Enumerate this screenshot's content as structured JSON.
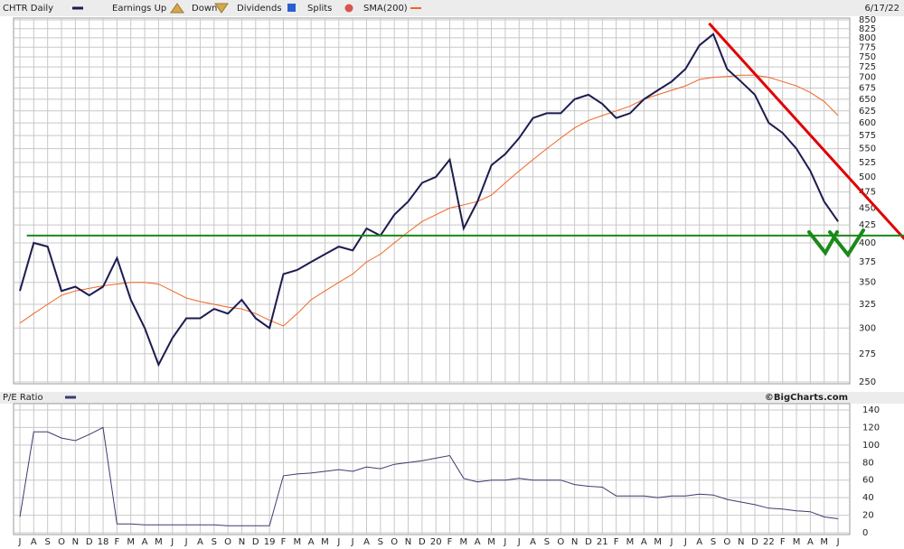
{
  "chart_data": [
    {
      "type": "line",
      "log_scale": true,
      "grid": true,
      "date": "6/17/22",
      "legend_extra": [
        "Earnings Up",
        "Down",
        "Dividends",
        "Splits"
      ],
      "ylim": [
        250,
        850
      ],
      "yticks": [
        250,
        275,
        300,
        325,
        350,
        375,
        400,
        425,
        450,
        475,
        500,
        525,
        550,
        575,
        600,
        625,
        650,
        675,
        700,
        725,
        750,
        775,
        800,
        825,
        850
      ],
      "series": [
        {
          "name": "CHTR Daily",
          "color": "#1c1c50",
          "values": [
            340,
            400,
            395,
            340,
            345,
            335,
            345,
            380,
            330,
            300,
            265,
            290,
            310,
            310,
            320,
            315,
            330,
            310,
            300,
            360,
            365,
            375,
            385,
            395,
            390,
            420,
            410,
            440,
            460,
            490,
            500,
            530,
            420,
            460,
            520,
            540,
            570,
            610,
            620,
            620,
            650,
            660,
            640,
            610,
            620,
            650,
            670,
            690,
            720,
            780,
            810,
            720,
            690,
            660,
            600,
            580,
            550,
            510,
            460,
            430
          ]
        },
        {
          "name": "SMA(200)",
          "color": "#f26522",
          "values": [
            305,
            315,
            325,
            335,
            340,
            343,
            346,
            348,
            350,
            350,
            348,
            340,
            332,
            328,
            325,
            322,
            320,
            315,
            308,
            302,
            315,
            330,
            340,
            350,
            360,
            375,
            385,
            400,
            415,
            430,
            440,
            450,
            455,
            460,
            470,
            490,
            510,
            530,
            550,
            570,
            590,
            605,
            615,
            625,
            635,
            650,
            660,
            670,
            680,
            695,
            700,
            702,
            705,
            705,
            700,
            690,
            680,
            665,
            645,
            615
          ]
        }
      ],
      "trendlines": [
        {
          "color": "#e00000",
          "points": [
            [
              49.7,
              840
            ],
            [
              63.8,
              405
            ]
          ]
        },
        {
          "color": "#1a8a1a",
          "points": [
            [
              0.5,
              410
            ],
            [
              63.8,
              410
            ]
          ]
        }
      ]
    },
    {
      "type": "line",
      "grid": true,
      "source": "©BigCharts.com",
      "categories": [
        "J",
        "A",
        "S",
        "O",
        "N",
        "D",
        "18",
        "F",
        "M",
        "A",
        "M",
        "J",
        "J",
        "A",
        "S",
        "O",
        "N",
        "D",
        "19",
        "F",
        "M",
        "A",
        "M",
        "J",
        "J",
        "A",
        "S",
        "O",
        "N",
        "D",
        "20",
        "F",
        "M",
        "A",
        "M",
        "J",
        "J",
        "A",
        "S",
        "O",
        "N",
        "D",
        "21",
        "F",
        "M",
        "A",
        "M",
        "J",
        "J",
        "A",
        "S",
        "O",
        "N",
        "D",
        "22",
        "F",
        "M",
        "A",
        "M",
        "J"
      ],
      "ylim": [
        0,
        140
      ],
      "yticks": [
        0,
        20,
        40,
        60,
        80,
        100,
        120,
        140
      ],
      "series": [
        {
          "name": "P/E Ratio",
          "color": "#3c3c70",
          "values": [
            18,
            115,
            115,
            108,
            105,
            112,
            120,
            10,
            10,
            9,
            9,
            9,
            9,
            9,
            9,
            8,
            8,
            8,
            8,
            65,
            67,
            68,
            70,
            72,
            70,
            75,
            73,
            78,
            80,
            82,
            85,
            88,
            62,
            58,
            60,
            60,
            62,
            60,
            60,
            60,
            55,
            53,
            52,
            42,
            42,
            42,
            40,
            42,
            42,
            44,
            43,
            38,
            35,
            32,
            28,
            27,
            25,
            24,
            18,
            16
          ]
        }
      ]
    }
  ]
}
